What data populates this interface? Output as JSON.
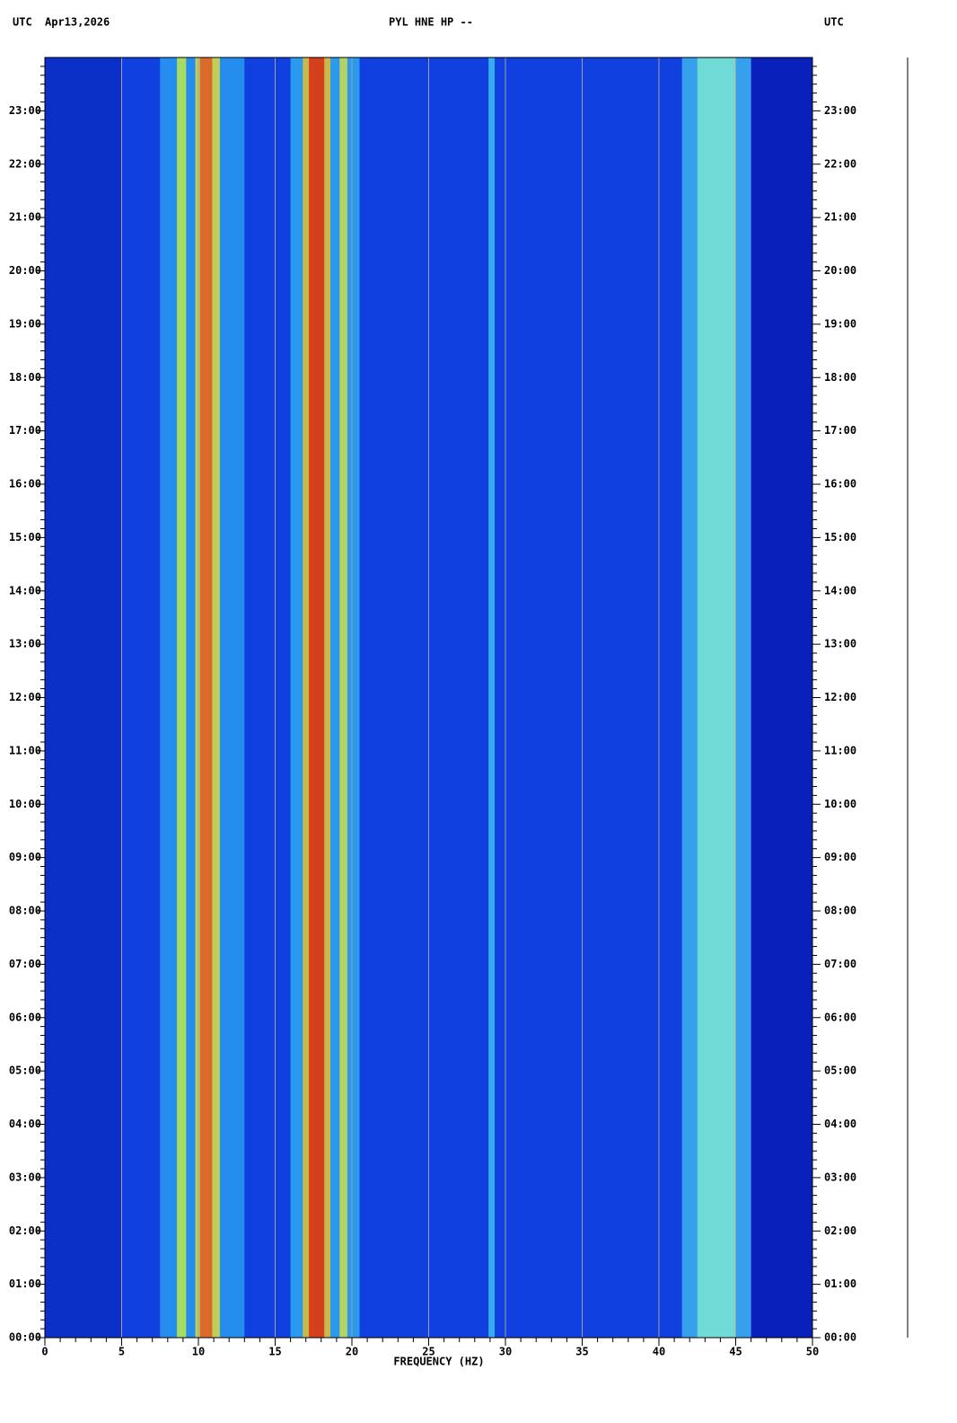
{
  "chart_data": {
    "type": "spectrogram",
    "title": "PYL HNE HP --",
    "left_label": "UTC",
    "date": "Apr13,2026",
    "right_label": "UTC",
    "xlabel": "FREQUENCY (HZ)",
    "xlim": [
      0,
      50
    ],
    "xticks": [
      0,
      5,
      10,
      15,
      20,
      25,
      30,
      35,
      40,
      45,
      50
    ],
    "ylim": [
      0,
      24
    ],
    "yticks": [
      {
        "value": 0,
        "label": "00:00"
      },
      {
        "value": 1,
        "label": "01:00"
      },
      {
        "value": 2,
        "label": "02:00"
      },
      {
        "value": 3,
        "label": "03:00"
      },
      {
        "value": 4,
        "label": "04:00"
      },
      {
        "value": 5,
        "label": "05:00"
      },
      {
        "value": 6,
        "label": "06:00"
      },
      {
        "value": 7,
        "label": "07:00"
      },
      {
        "value": 8,
        "label": "08:00"
      },
      {
        "value": 9,
        "label": "09:00"
      },
      {
        "value": 10,
        "label": "10:00"
      },
      {
        "value": 11,
        "label": "11:00"
      },
      {
        "value": 12,
        "label": "12:00"
      },
      {
        "value": 13,
        "label": "13:00"
      },
      {
        "value": 14,
        "label": "14:00"
      },
      {
        "value": 15,
        "label": "15:00"
      },
      {
        "value": 16,
        "label": "16:00"
      },
      {
        "value": 17,
        "label": "17:00"
      },
      {
        "value": 18,
        "label": "18:00"
      },
      {
        "value": 19,
        "label": "19:00"
      },
      {
        "value": 20,
        "label": "20:00"
      },
      {
        "value": 21,
        "label": "21:00"
      },
      {
        "value": 22,
        "label": "22:00"
      },
      {
        "value": 23,
        "label": "23:00"
      }
    ],
    "background": "#1040e0",
    "grid": true,
    "bands": [
      {
        "x": [
          0,
          5
        ],
        "color": "#0a2cc0"
      },
      {
        "x": [
          46,
          50
        ],
        "color": "#0818b0"
      },
      {
        "x": [
          7.5,
          13
        ],
        "color": "#2aa0f0"
      },
      {
        "x": [
          8.6,
          9.2
        ],
        "color": "#c8f040"
      },
      {
        "x": [
          9.8,
          11.4
        ],
        "color": "#e8e030"
      },
      {
        "x": [
          10.1,
          10.9
        ],
        "color": "#e05020"
      },
      {
        "x": [
          16,
          20.5
        ],
        "color": "#30b0f0"
      },
      {
        "x": [
          16.8,
          18.6
        ],
        "color": "#f0c020"
      },
      {
        "x": [
          17.2,
          18.2
        ],
        "color": "#d82010"
      },
      {
        "x": [
          19.2,
          19.7
        ],
        "color": "#d8e040"
      },
      {
        "x": [
          28.9,
          29.3
        ],
        "color": "#40c8f0"
      },
      {
        "x": [
          41.5,
          46
        ],
        "color": "#40b8f0"
      },
      {
        "x": [
          42.5,
          45
        ],
        "color": "#80e8d0"
      }
    ]
  }
}
